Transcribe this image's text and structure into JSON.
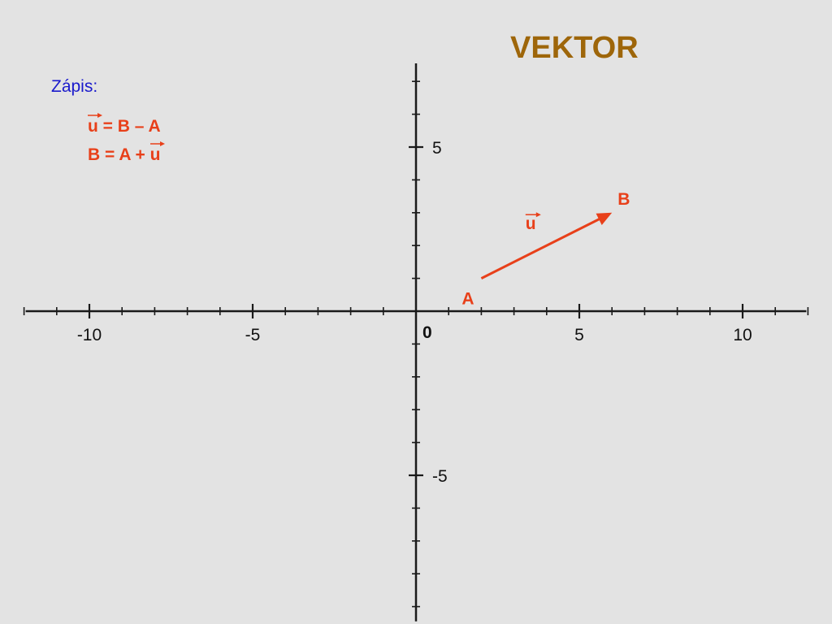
{
  "title": "VEKTOR",
  "notes": {
    "label": "Zápis:",
    "formula1": {
      "vec": "u",
      "rest": " = B – A"
    },
    "formula2": {
      "lead": "B = A + ",
      "vec": "u"
    }
  },
  "colors": {
    "background": "#e3e3e3",
    "title": "#9e660a",
    "note_label": "#1a1acc",
    "vector": "#e8401a",
    "axis": "#1a1a1a"
  },
  "chart_data": {
    "type": "coordinate-plane",
    "x_range": [
      -12,
      12
    ],
    "y_range": [
      -9.5,
      7.5
    ],
    "x_tick_step": 1,
    "y_tick_step": 1,
    "x_tick_labels": [
      {
        "value": -10,
        "text": "-10"
      },
      {
        "value": -5,
        "text": "-5"
      },
      {
        "value": 5,
        "text": "5"
      },
      {
        "value": 10,
        "text": "10"
      }
    ],
    "y_tick_labels": [
      {
        "value": 5,
        "text": "5"
      },
      {
        "value": -5,
        "text": "-5"
      }
    ],
    "origin_label": "0",
    "grid": false,
    "points": [
      {
        "name": "A",
        "x": 2,
        "y": 1
      },
      {
        "name": "B",
        "x": 6,
        "y": 3
      }
    ],
    "vector": {
      "from": "A",
      "to": "B",
      "label": "u"
    }
  }
}
